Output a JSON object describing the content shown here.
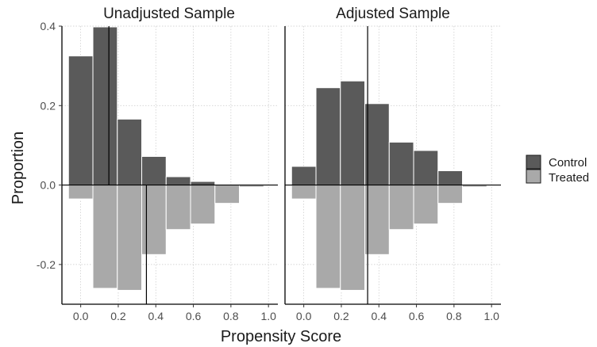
{
  "chart_data": {
    "type": "bar",
    "xlabel": "Propensity Score",
    "ylabel": "Proportion",
    "xlim": [
      -0.1,
      1.05
    ],
    "ylim": [
      -0.3,
      0.4
    ],
    "x_ticks": [
      "0.0",
      "0.2",
      "0.4",
      "0.6",
      "0.8",
      "1.0"
    ],
    "y_ticks": [
      "-0.2",
      "0.0",
      "0.2",
      "0.4"
    ],
    "bin_width": 0.13,
    "bin_centers": [
      0.0,
      0.13,
      0.26,
      0.39,
      0.52,
      0.65,
      0.78,
      0.91
    ],
    "colors": {
      "control": "#5a5a5a",
      "treated": "#a9a9a9"
    },
    "legend": {
      "position": "right",
      "items": [
        "Control",
        "Treated"
      ]
    },
    "panels": [
      {
        "title": "Unadjusted Sample",
        "series": [
          {
            "name": "Control",
            "values": [
              0.325,
              0.398,
              0.166,
              0.072,
              0.021,
              0.009,
              0.0,
              0.0
            ]
          },
          {
            "name": "Treated",
            "values": [
              -0.035,
              -0.26,
              -0.265,
              -0.175,
              -0.112,
              -0.098,
              -0.046,
              -0.005
            ]
          }
        ],
        "control_mean": 0.15,
        "treated_mean": 0.35
      },
      {
        "title": "Adjusted Sample",
        "series": [
          {
            "name": "Control",
            "values": [
              0.047,
              0.245,
              0.262,
              0.205,
              0.108,
              0.087,
              0.036,
              0.0
            ]
          },
          {
            "name": "Treated",
            "values": [
              -0.035,
              -0.26,
              -0.265,
              -0.175,
              -0.112,
              -0.098,
              -0.046,
              -0.005
            ]
          }
        ],
        "control_mean": 0.34,
        "treated_mean": 0.34
      }
    ]
  }
}
